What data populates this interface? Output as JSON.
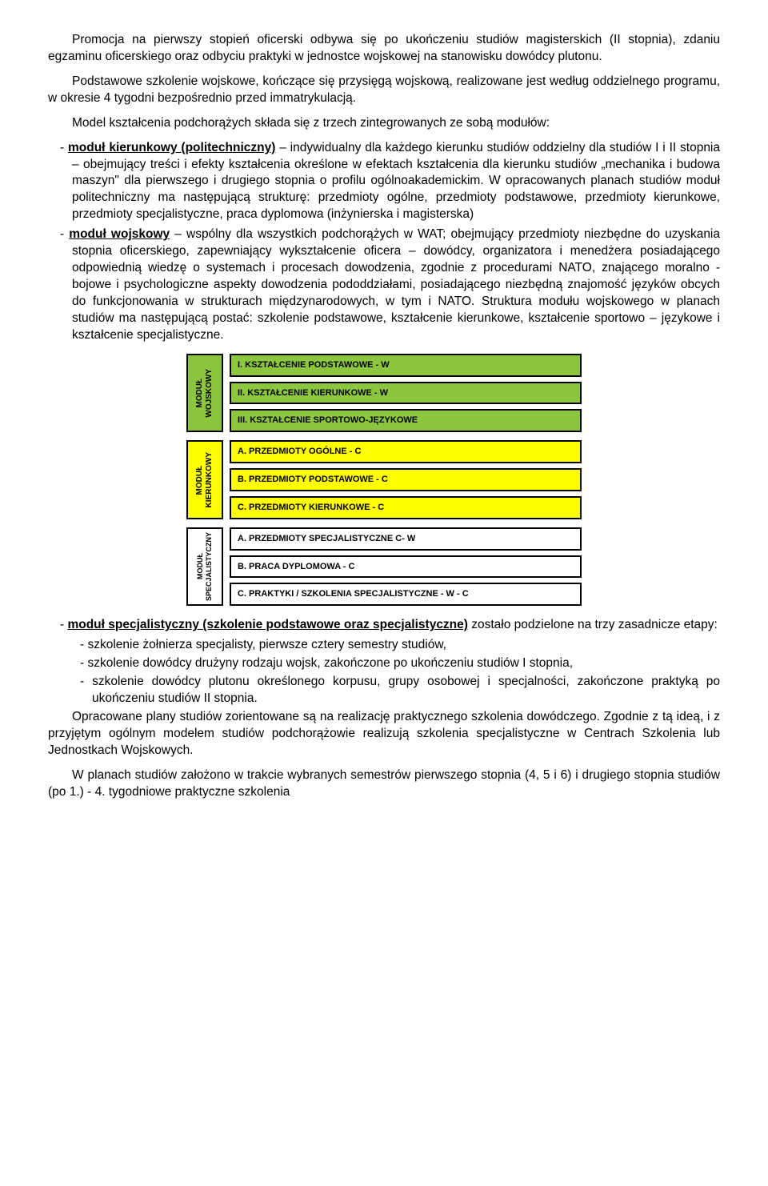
{
  "para1": "Promocja na pierwszy stopień oficerski odbywa się po ukończeniu studiów magisterskich (II stopnia), zdaniu egzaminu oficerskiego oraz odbyciu praktyki w jednostce wojskowej na stanowisku dowódcy plutonu.",
  "para2": "Podstawowe szkolenie wojskowe, kończące się przysięgą wojskową, realizowane jest według oddzielnego programu, w okresie 4 tygodni bezpośrednio przed immatrykulacją.",
  "para3": "Model kształcenia podchorążych składa się z trzech zintegrowanych ze sobą modułów:",
  "item1_lead": "moduł kierunkowy (politechniczny)",
  "item1_rest": " – indywidualny dla każdego kierunku studiów oddzielny dla studiów I i II stopnia – obejmujący treści i efekty kształcenia określone w efektach kształcenia dla kierunku studiów „mechanika i budowa maszyn\" dla pierwszego i drugiego stopnia o profilu ogólnoakademickim. W opracowanych planach studiów moduł politechniczny ma następującą strukturę: przedmioty ogólne, przedmioty podstawowe, przedmioty kierunkowe, przedmioty specjalistyczne, praca dyplomowa (inżynierska i magisterska)",
  "item2_lead": "moduł wojskowy",
  "item2_rest": " – wspólny dla wszystkich podchorążych w WAT; obejmujący przedmioty niezbędne do uzyskania stopnia oficerskiego, zapewniający wykształcenie oficera – dowódcy, organizatora i menedżera posiadającego odpowiednią wiedzę o systemach i procesach dowodzenia, zgodnie z procedurami NATO, znającego moralno - bojowe i psychologiczne aspekty dowodzenia pododdziałami, posiadającego niezbędną znajomość języków obcych do funkcjonowania w strukturach międzynarodowych, w tym i NATO. Struktura modułu wojskowego w planach studiów ma następującą postać: szkolenie podstawowe, kształcenie kierunkowe, kształcenie sportowo – językowe i kształcenie specjalistyczne.",
  "modules": {
    "m1": {
      "label": "MODUŁ\nWOJSKOWY",
      "label_bg": "#8cc63f",
      "bars": [
        {
          "text": "I. KSZTAŁCENIE PODSTAWOWE - W",
          "bg": "#8cc63f"
        },
        {
          "text": "II. KSZTAŁCENIE KIERUNKOWE - W",
          "bg": "#8cc63f"
        },
        {
          "text": "III. KSZTAŁCENIE SPORTOWO-JĘZYKOWE",
          "bg": "#8cc63f"
        }
      ]
    },
    "m2": {
      "label": "MODUŁ\nKIERUNKOWY",
      "label_bg": "#ffff00",
      "bars": [
        {
          "text": "A. PRZEDMIOTY OGÓLNE - C",
          "bg": "#ffff00"
        },
        {
          "text": "B. PRZEDMIOTY PODSTAWOWE - C",
          "bg": "#ffff00"
        },
        {
          "text": "C. PRZEDMIOTY KIERUNKOWE - C",
          "bg": "#ffff00"
        }
      ]
    },
    "m3": {
      "label": "MODUŁ\nSPECJALISTYCZNY",
      "label_bg": "#ffffff",
      "bars": [
        {
          "text": "A. PRZEDMIOTY SPECJALISTYCZNE C- W",
          "bg": "#ffffff"
        },
        {
          "text": "B. PRACA DYPLOMOWA - C",
          "bg": "#ffffff"
        },
        {
          "text": "C. PRAKTYKI / SZKOLENIA SPECJALISTYCZNE - W - C",
          "bg": "#ffffff"
        }
      ]
    }
  },
  "item3_lead": "moduł specjalistyczny (szkolenie podstawowe oraz specjalistyczne)",
  "item3_rest": " zostało podzielone na trzy zasadnicze etapy:",
  "sub1": "szkolenie żołnierza specjalisty, pierwsze cztery semestry studiów,",
  "sub2": "szkolenie dowódcy drużyny rodzaju wojsk, zakończone po ukończeniu studiów I stopnia,",
  "sub3": "szkolenie dowódcy plutonu określonego korpusu, grupy osobowej i specjalności, zakończone praktyką po ukończeniu studiów II stopnia.",
  "para4": "Opracowane plany studiów zorientowane są na realizację praktycznego szkolenia dowódczego. Zgodnie z tą ideą, i z przyjętym ogólnym modelem studiów podchorążowie realizują szkolenia specjalistyczne w Centrach Szkolenia lub Jednostkach Wojskowych.",
  "para5": "W planach studiów założono w trakcie wybranych semestrów pierwszego stopnia (4, 5 i 6) i drugiego stopnia studiów (po 1.) - 4. tygodniowe praktyczne szkolenia",
  "colors": {
    "green": "#8cc63f",
    "yellow": "#ffff00",
    "white": "#ffffff",
    "border": "#000000"
  }
}
